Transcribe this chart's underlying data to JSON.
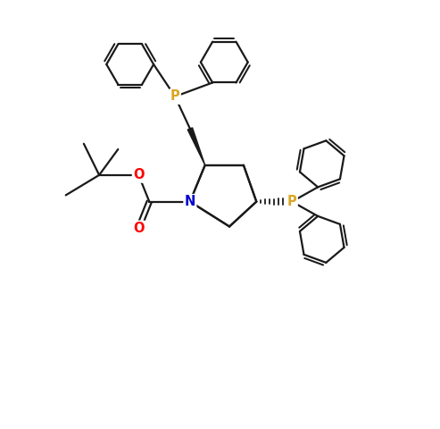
{
  "background_color": "#ffffff",
  "atom_colors": {
    "P": "#DAA520",
    "N": "#0000CD",
    "O": "#FF0000",
    "C": "#000000"
  },
  "line_color": "#1a1a1a",
  "line_width": 1.6,
  "figsize": [
    4.93,
    4.8
  ],
  "dpi": 100,
  "xlim": [
    0,
    10
  ],
  "ylim": [
    0,
    10
  ]
}
